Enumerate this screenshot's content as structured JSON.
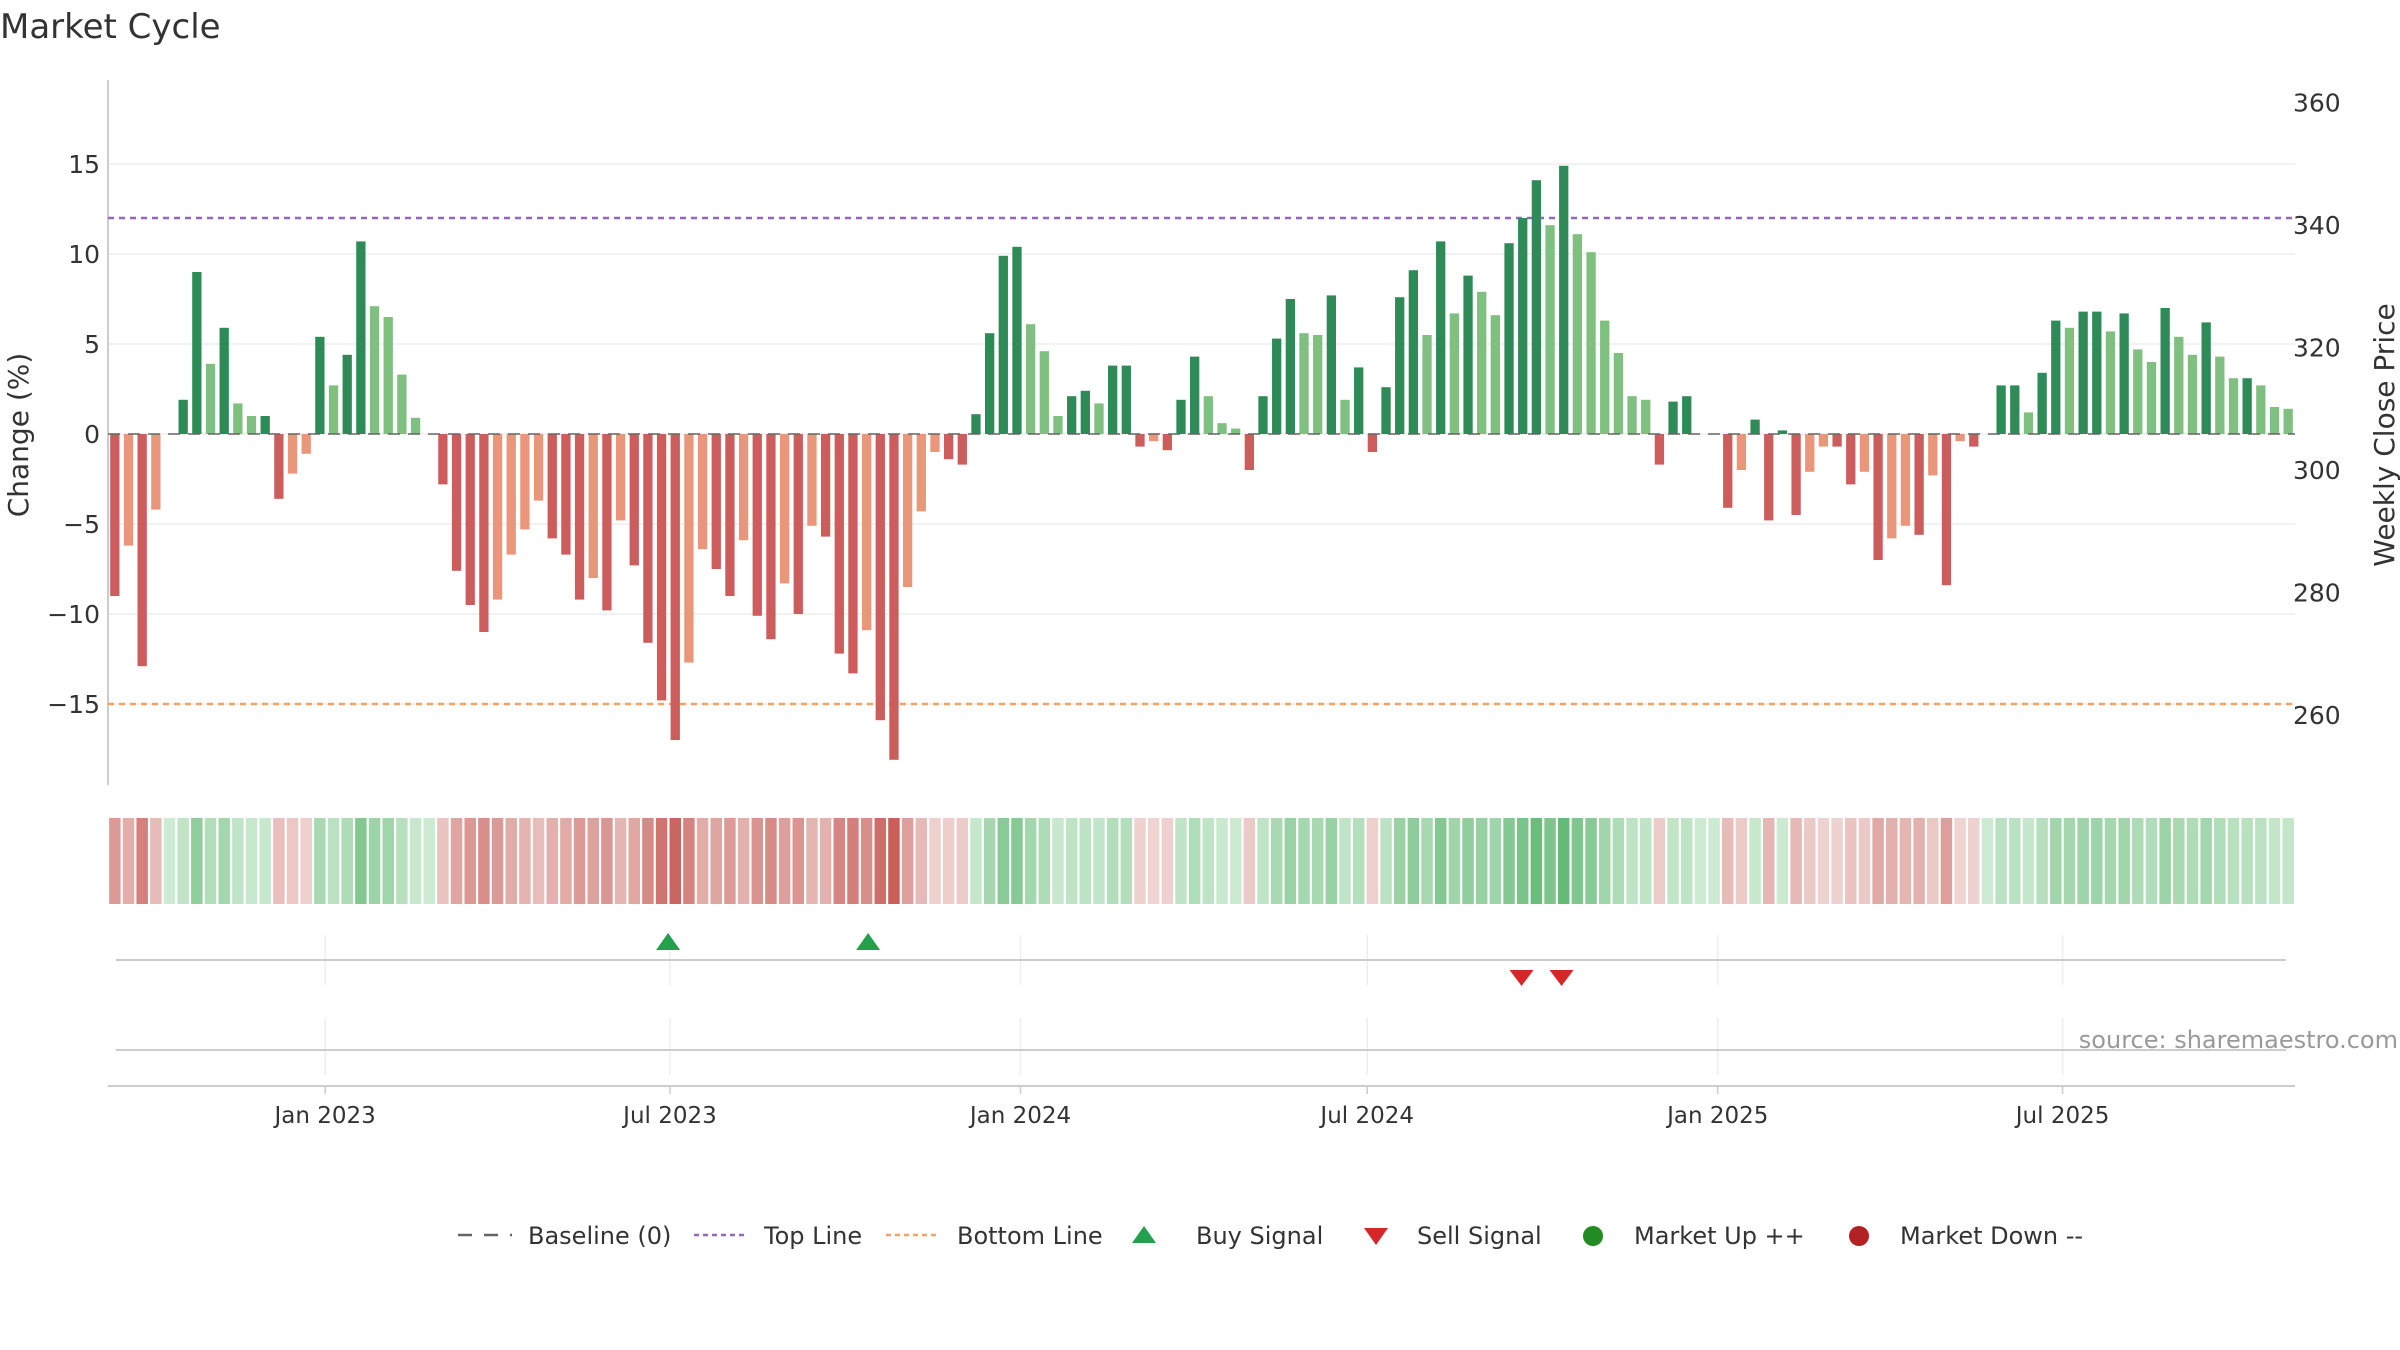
{
  "chart_data": {
    "type": "bar",
    "title": "Market Cycle",
    "ylabel_left": "Change (%)",
    "ylabel_right": "Weekly Close Price",
    "ylim_left": [
      -19.5,
      19.5
    ],
    "ylim_right": [
      250,
      360
    ],
    "yticks_left": [
      "15",
      "10",
      "5",
      "0",
      "−5",
      "−10",
      "−15"
    ],
    "yticks_left_values": [
      15,
      10,
      5,
      0,
      -5,
      -10,
      -15
    ],
    "yticks_right": [
      "260",
      "280",
      "300",
      "320",
      "340",
      "360"
    ],
    "yticks_right_values": [
      260,
      280,
      300,
      320,
      340,
      360
    ],
    "x_start": "2022-09-09",
    "x_end": "2025-10-31",
    "xticks": [
      "Jan 2023",
      "Jul 2023",
      "Jan 2024",
      "Jul 2024",
      "Jan 2025",
      "Jul 2025"
    ],
    "xticks_dates": [
      "2023-01-01",
      "2023-07-01",
      "2024-01-01",
      "2024-07-01",
      "2025-01-01",
      "2025-07-01"
    ],
    "top_line": 12,
    "bottom_line": -15,
    "values": [
      -9,
      -6.2,
      -12.9,
      -4.2,
      0,
      1.9,
      9,
      3.9,
      5.9,
      1.7,
      1.0,
      1.0,
      -3.6,
      -2.2,
      -1.1,
      5.4,
      2.7,
      4.4,
      10.7,
      7.1,
      6.5,
      3.3,
      0.9,
      0,
      -2.8,
      -7.6,
      -9.5,
      -11.0,
      -9.2,
      -6.7,
      -5.3,
      -3.7,
      -5.8,
      -6.7,
      -9.2,
      -8.0,
      -9.8,
      -4.8,
      -7.3,
      -11.6,
      -14.8,
      -17.0,
      -12.7,
      -6.4,
      -7.5,
      -9.0,
      -5.9,
      -10.1,
      -11.4,
      -8.3,
      -10.0,
      -5.1,
      -5.7,
      -12.2,
      -13.3,
      -10.9,
      -15.9,
      -18.1,
      -8.5,
      -4.3,
      -1.0,
      -1.4,
      -1.7,
      1.1,
      5.6,
      9.9,
      10.4,
      6.1,
      4.6,
      1.0,
      2.1,
      2.4,
      1.7,
      3.8,
      3.8,
      -0.7,
      -0.4,
      -0.9,
      1.9,
      4.3,
      2.1,
      0.6,
      0.3,
      -2.0,
      2.1,
      5.3,
      7.5,
      5.6,
      5.5,
      7.7,
      1.9,
      3.7,
      -1.0,
      2.6,
      7.6,
      9.1,
      5.5,
      10.7,
      6.7,
      8.8,
      7.9,
      6.6,
      10.6,
      12.0,
      14.1,
      11.6,
      14.9,
      11.1,
      10.1,
      6.3,
      4.5,
      2.1,
      1.9,
      -1.7,
      1.8,
      2.1,
      0,
      0,
      -4.1,
      -2.0,
      0.8,
      -4.8,
      0.2,
      -4.5,
      -2.1,
      -0.7,
      -0.7,
      -2.8,
      -2.1,
      -7.0,
      -5.8,
      -5.1,
      -5.6,
      -2.3,
      -8.4,
      -0.4,
      -0.7,
      0,
      2.7,
      2.7,
      1.2,
      3.4,
      6.3,
      5.9,
      6.8,
      6.8,
      5.7,
      6.7,
      4.7,
      4.0,
      7.0,
      5.4,
      4.4,
      6.2,
      4.3,
      3.1,
      3.1,
      2.7,
      1.5,
      1.4
    ],
    "buy_signal_dates": [
      "2023-06-30",
      "2023-10-13"
    ],
    "sell_signal_dates": [
      "2024-09-20",
      "2024-10-11"
    ],
    "colors": {
      "strong_up": "#2e8b57",
      "up": "#7fbf7f",
      "strong_down": "#cd5c5c",
      "down": "#e9967a",
      "top_line": "#9467bd",
      "bottom_line": "#f4a460",
      "buy": "#22a04b",
      "sell": "#d62728",
      "market_up": "#228b22",
      "market_down": "#b22222"
    },
    "legend": {
      "position": "bottom-center",
      "baseline": "Baseline (0)",
      "top_line": "Top Line",
      "bottom_line": "Bottom Line",
      "buy": "Buy Signal",
      "sell": "Sell Signal",
      "market_up": "Market Up ++",
      "market_down": "Market Down --"
    },
    "source": "source: sharemaestro.com"
  }
}
